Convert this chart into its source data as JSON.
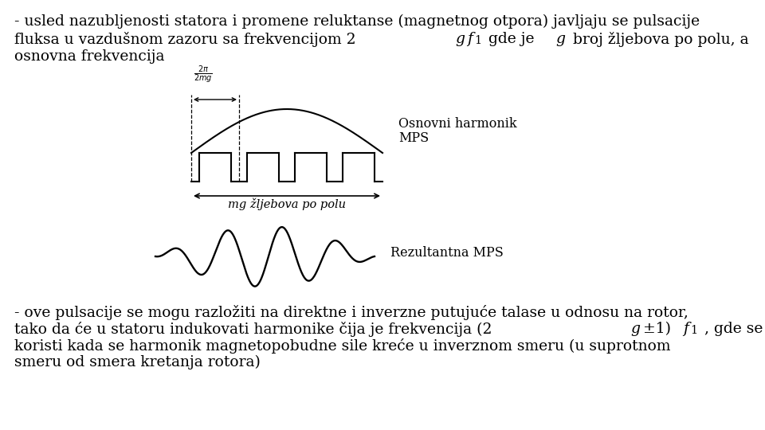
{
  "bg_color": "#ffffff",
  "text_color": "#000000",
  "top_line1": "- usled nazubljenosti statora i promene reluktanse (magnetnog otpora) javljaju se pulsacije",
  "top_line3": "osnovna frekvencija",
  "diagram1_label_line1": "Osnovni harmonik",
  "diagram1_label_line2": "MPS",
  "diagram1_arrow_label": "mgžljebova po polu",
  "diagram2_label": "Rezultantna MPS",
  "bottom_line1": "- ove pulsacije se mogu razložiti na direktne i inverzne putujuće talase u odnosu na rotor,",
  "bottom_line3": "koristi kada se harmonik magnetopobudne sile kreće u inverznom smeru (u suprotnom",
  "bottom_line4": "smeru od smera kretanja rotora)",
  "font_size": 13.5,
  "diagram_font_size": 11.5
}
